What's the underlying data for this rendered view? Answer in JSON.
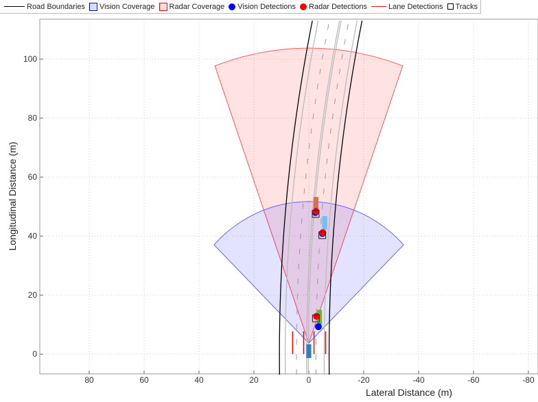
{
  "chart_data": {
    "type": "birds-eye-plot",
    "xlabel": "Lateral Distance (m)",
    "ylabel": "Longitudinal Distance (m)",
    "xlim": [
      98,
      -83.5
    ],
    "ylim": [
      -6.7,
      113.5
    ],
    "x_reversed": true,
    "grid": true,
    "legend_placement": "top",
    "x_ticks": [
      "80",
      "60",
      "40",
      "20",
      "0",
      "-20",
      "-40",
      "-60",
      "-80"
    ],
    "y_ticks": [
      "0",
      "20",
      "40",
      "60",
      "80",
      "100"
    ],
    "legend": [
      {
        "label": "Road Boundaries",
        "icon": "line",
        "color": "#000000"
      },
      {
        "label": "Vision Coverage",
        "icon": "patch",
        "color": "#0000ff"
      },
      {
        "label": "Radar Coverage",
        "icon": "patch",
        "color": "#ff0000"
      },
      {
        "label": "Vision Detections",
        "icon": "filled-circle",
        "color": "#0000ff"
      },
      {
        "label": "Radar Detections",
        "icon": "filled-circle",
        "color": "#ff0000"
      },
      {
        "label": "Lane Detections",
        "icon": "line",
        "color": "#ff0000"
      },
      {
        "label": "Tracks",
        "icon": "square",
        "color": "#000000"
      }
    ],
    "radar_coverage": {
      "origin": [
        0,
        3.7
      ],
      "range": 100,
      "fov_deg": 40,
      "color": "#ff0000"
    },
    "vision_coverage": {
      "origin": [
        0,
        3.7
      ],
      "range": 48,
      "fov_deg": 92,
      "color": "#0000ff"
    },
    "road_boundaries_lateral_at_0m": [
      10.7,
      -7.4
    ],
    "road_curvature": -0.00094,
    "lane_markings_lateral_at_0m": [
      8.6,
      4.5,
      0.8,
      0.2,
      -2.6,
      -5.6
    ],
    "lane_detections": [
      {
        "x": 5.9,
        "y": [
          0,
          7.7
        ]
      },
      {
        "x": 1.9,
        "y": [
          0,
          7.7
        ]
      },
      {
        "x": -1.9,
        "y": [
          0,
          7.7
        ]
      },
      {
        "x": -6.1,
        "y": [
          0,
          7.7
        ]
      }
    ],
    "radar_detections": [
      [
        -2.6,
        48.4
      ],
      [
        -5.1,
        41.2
      ],
      [
        -2.8,
        12.8
      ]
    ],
    "vision_detections": [
      [
        -2.4,
        48.0
      ],
      [
        -5.0,
        40.9
      ],
      [
        -3.5,
        9.3
      ]
    ],
    "tracks": [
      [
        -2.5,
        47.5
      ],
      [
        -4.9,
        40.3
      ],
      [
        -2.6,
        12.1
      ]
    ],
    "vehicles": [
      {
        "x": -2.6,
        "y": 51,
        "length": 4.5,
        "width": 1.8,
        "color": "#e07040"
      },
      {
        "x": -5.8,
        "y": 44.5,
        "length": 4.5,
        "width": 1.8,
        "color": "#70c0f0"
      },
      {
        "x": -3.9,
        "y": 12.5,
        "length": 5,
        "width": 1.8,
        "color": "#70b040"
      },
      {
        "x": 0,
        "y": 1,
        "length": 4.7,
        "width": 1.8,
        "color": "#3080c0"
      }
    ]
  }
}
